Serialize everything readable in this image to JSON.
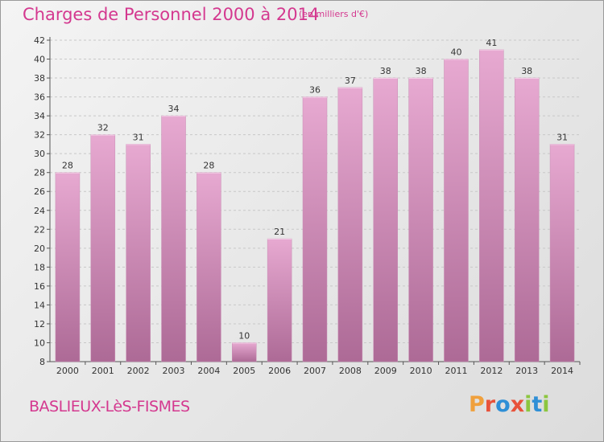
{
  "header": {
    "title": "Charges de Personnel 2000 à 2014",
    "subtitle": "(en milliers d'€)"
  },
  "footer": {
    "commune": "BASLIEUX-LèS-FISMES",
    "brand": [
      "P",
      "r",
      "o",
      "x",
      "i",
      "t",
      "i"
    ]
  },
  "colors": {
    "title": "#d4388f",
    "bar_top": "#e7a9d1",
    "bar_bottom": "#ad6a96",
    "grid": "#c8c8c8",
    "brand": [
      "#f0a03c",
      "#e8523a",
      "#2f8fd6",
      "#e8523a",
      "#8cc63f",
      "#2f8fd6",
      "#8cc63f"
    ]
  },
  "chart_data": {
    "type": "bar",
    "categories": [
      "2000",
      "2001",
      "2002",
      "2003",
      "2004",
      "2005",
      "2006",
      "2007",
      "2008",
      "2009",
      "2010",
      "2011",
      "2012",
      "2013",
      "2014"
    ],
    "values": [
      28,
      32,
      31,
      34,
      28,
      10,
      21,
      36,
      37,
      38,
      38,
      40,
      41,
      38,
      31
    ],
    "ylim": [
      8,
      42
    ],
    "yticks": [
      8,
      10,
      12,
      14,
      16,
      18,
      20,
      22,
      24,
      26,
      28,
      30,
      32,
      34,
      36,
      38,
      40,
      42
    ],
    "grid": true,
    "data_labels": true
  }
}
